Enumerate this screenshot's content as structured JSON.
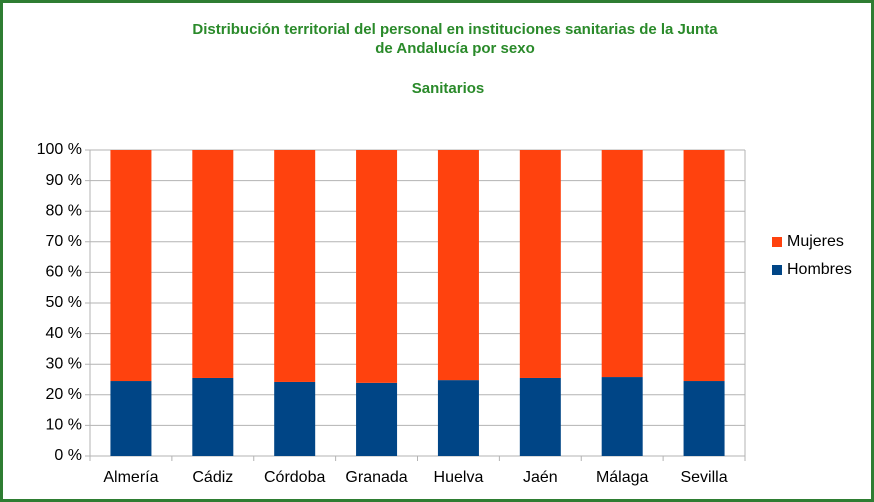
{
  "chart_data": {
    "type": "stacked_bar",
    "title": [
      "Distribución territorial del personal  en instituciones sanitarias de la Junta",
      "de Andalucía por sexo"
    ],
    "subtitle": "Sanitarios",
    "categories": [
      "Almería",
      "Cádiz",
      "Córdoba",
      "Granada",
      "Huelva",
      "Jaén",
      "Málaga",
      "Sevilla"
    ],
    "series": [
      {
        "name": "Hombres",
        "color": "#004586",
        "values": [
          24.5,
          25.5,
          24.2,
          23.9,
          24.8,
          25.5,
          25.8,
          24.5
        ]
      },
      {
        "name": "Mujeres",
        "color": "#ff420e",
        "values": [
          75.5,
          74.5,
          75.8,
          76.1,
          75.2,
          74.5,
          74.2,
          75.5
        ]
      }
    ],
    "ylim": [
      0,
      100
    ],
    "yticks": [
      {
        "value": 0,
        "label": "0 %"
      },
      {
        "value": 10,
        "label": "10 %"
      },
      {
        "value": 20,
        "label": "20 %"
      },
      {
        "value": 30,
        "label": "30 %"
      },
      {
        "value": 40,
        "label": "40 %"
      },
      {
        "value": 50,
        "label": "50 %"
      },
      {
        "value": 60,
        "label": "60 %"
      },
      {
        "value": 70,
        "label": "70 %"
      },
      {
        "value": 80,
        "label": "80 %"
      },
      {
        "value": 90,
        "label": "90 %"
      },
      {
        "value": 100,
        "label": "100 %"
      }
    ],
    "grid": true,
    "legend": "right"
  }
}
